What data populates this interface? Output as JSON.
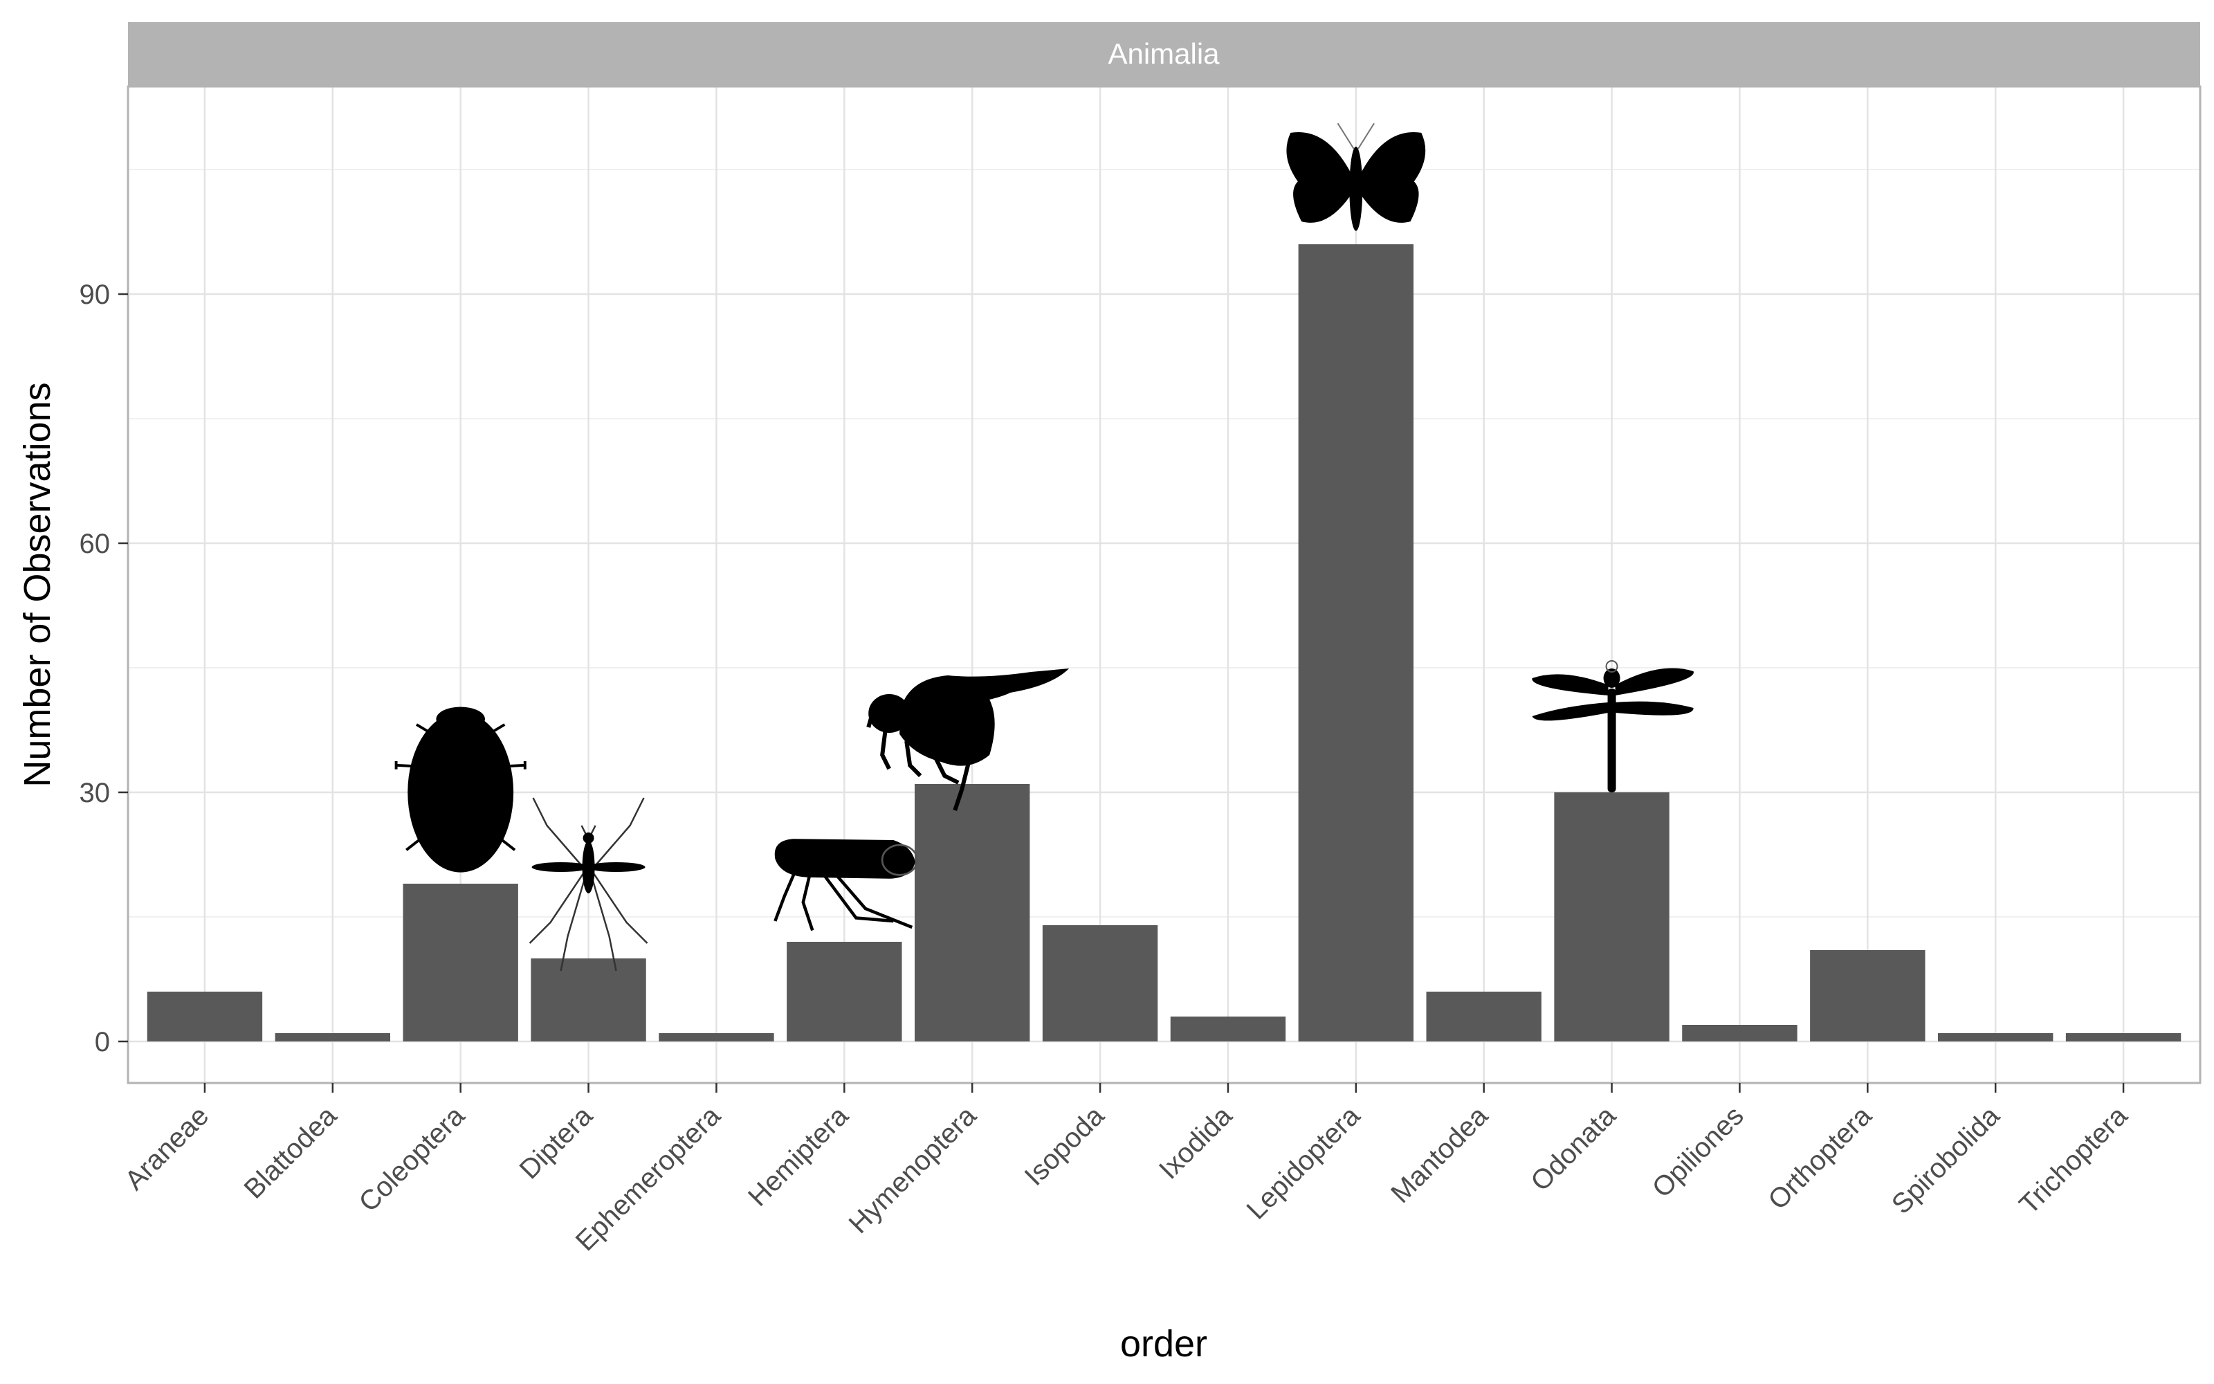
{
  "chart_data": {
    "type": "bar",
    "facet_label": "Animalia",
    "xlabel": "order",
    "ylabel": "Number of Observations",
    "categories": [
      "Araneae",
      "Blattodea",
      "Coleoptera",
      "Diptera",
      "Ephemeroptera",
      "Hemiptera",
      "Hymenoptera",
      "Isopoda",
      "Ixodida",
      "Lepidoptera",
      "Mantodea",
      "Odonata",
      "Opiliones",
      "Orthoptera",
      "Spirobolida",
      "Trichoptera"
    ],
    "values": [
      6,
      1,
      19,
      10,
      1,
      12,
      31,
      14,
      3,
      96,
      6,
      30,
      2,
      11,
      1,
      1
    ],
    "yticks": [
      0,
      30,
      60,
      90
    ],
    "ylim": [
      -5,
      115
    ],
    "grid": true,
    "legend": "none",
    "bar_color": "#595959",
    "strip_color": "#b3b3b3",
    "silhouettes": [
      {
        "category": "Coleoptera",
        "icon": "beetle-icon"
      },
      {
        "category": "Diptera",
        "icon": "mosquito-icon"
      },
      {
        "category": "Hemiptera",
        "icon": "leafhopper-icon"
      },
      {
        "category": "Hymenoptera",
        "icon": "bee-icon"
      },
      {
        "category": "Lepidoptera",
        "icon": "moth-icon"
      },
      {
        "category": "Odonata",
        "icon": "dragonfly-icon"
      }
    ]
  }
}
